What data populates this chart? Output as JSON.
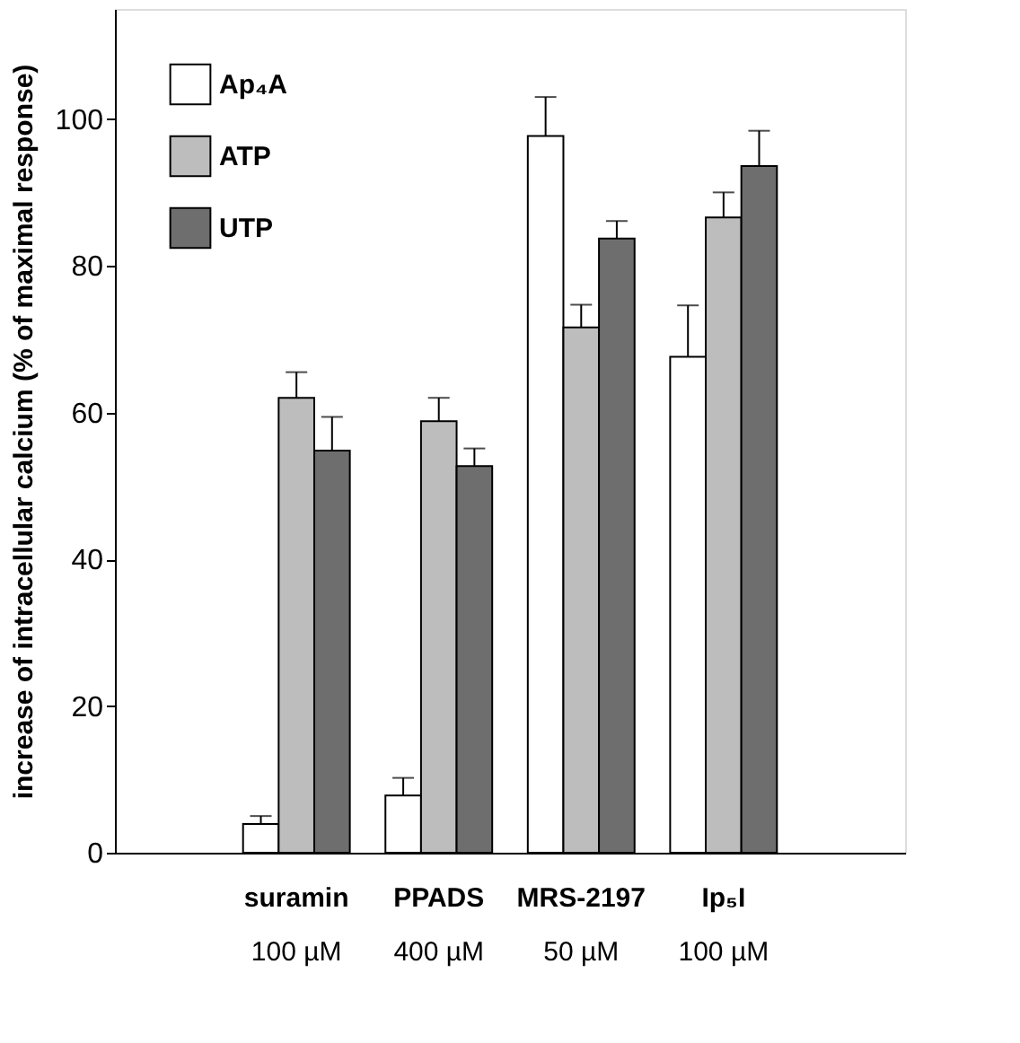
{
  "chart_data": {
    "type": "bar",
    "ylabel": "increase of intracellular calcium (% of maximal response)",
    "categories": [
      "suramin\n100 µM",
      "PPADS\n400 µM",
      "MRS-2197\n50 µM",
      "Ip₅I\n100 µM"
    ],
    "series": [
      {
        "name": "Ap₄A",
        "color": "#ffffff",
        "values": [
          3.9,
          7.8,
          97.7,
          67.6
        ],
        "errors": [
          [
            3.9,
            5.0
          ],
          [
            7.8,
            10.2
          ],
          [
            97.7,
            103.0
          ],
          [
            67.6,
            74.6
          ]
        ]
      },
      {
        "name": "ATP",
        "color": "#bdbdbd",
        "values": [
          62.0,
          58.8,
          71.6,
          86.6
        ],
        "errors": [
          [
            62.0,
            65.5
          ],
          [
            58.8,
            62.0
          ],
          [
            71.6,
            74.7
          ],
          [
            86.6,
            90.0
          ]
        ]
      },
      {
        "name": "UTP",
        "color": "#6e6e6e",
        "values": [
          54.8,
          52.7,
          83.7,
          93.6
        ],
        "errors": [
          [
            54.8,
            59.4
          ],
          [
            52.7,
            55.1
          ],
          [
            83.7,
            86.1
          ],
          [
            93.6,
            98.4
          ]
        ]
      }
    ],
    "ylim": [
      0,
      115
    ],
    "yticks": [
      0,
      20,
      40,
      60,
      80,
      100
    ],
    "grid": false,
    "legend": "top left"
  }
}
